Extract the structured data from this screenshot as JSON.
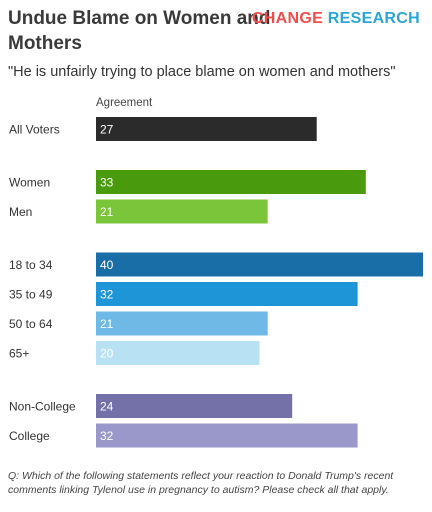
{
  "header": {
    "title": "Undue Blame on Women and Mothers",
    "brand_word1": "CHANGE",
    "brand_word2": "RESEARCH",
    "subtitle": "\"He is unfairly trying to place blame on women and mothers\""
  },
  "footnote": "Q: Which of the following statements reflect your reaction to Donald Trump's recent comments linking Tylenol use in pregnancy to autism? Please check all that apply.",
  "colors": {
    "all": "#2b2b2b",
    "women": "#4a9a0e",
    "men": "#7ac53a",
    "18-34": "#1a6ea8",
    "35-49": "#1e95d6",
    "50-64": "#6fb9e6",
    "65+": "#b9e1f4",
    "noncollege": "#7470a8",
    "college": "#9a97cb",
    "brand_red": "#f04e4e",
    "brand_blue": "#2aa6d8"
  },
  "chart_data": {
    "type": "bar",
    "orientation": "horizontal",
    "value_header": "Agreement",
    "xlim": [
      0,
      40
    ],
    "groups": [
      {
        "categories": [
          "All Voters"
        ],
        "values": [
          27
        ],
        "color_keys": [
          "all"
        ]
      },
      {
        "categories": [
          "Women",
          "Men"
        ],
        "values": [
          33,
          21
        ],
        "color_keys": [
          "women",
          "men"
        ]
      },
      {
        "categories": [
          "18 to 34",
          "35 to 49",
          "50 to 64",
          "65+"
        ],
        "values": [
          40,
          32,
          21,
          20
        ],
        "color_keys": [
          "18-34",
          "35-49",
          "50-64",
          "65+"
        ]
      },
      {
        "categories": [
          "Non-College",
          "College"
        ],
        "values": [
          24,
          32
        ],
        "color_keys": [
          "noncollege",
          "college"
        ]
      }
    ]
  }
}
